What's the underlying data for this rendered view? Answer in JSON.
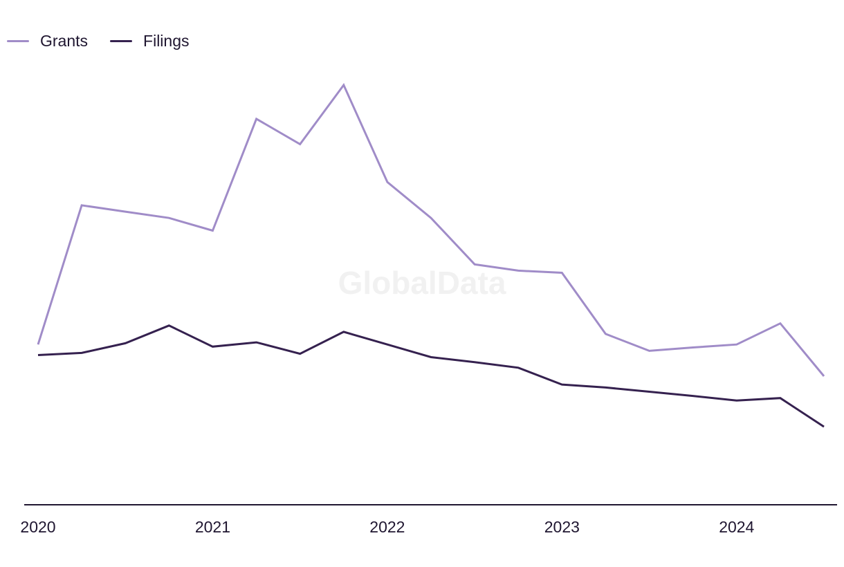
{
  "chart_data": {
    "type": "line",
    "title": "",
    "xlabel": "",
    "ylabel": "",
    "x_ticks": [
      "2020",
      "2021",
      "2022",
      "2023",
      "2024"
    ],
    "x": [
      "2020 Q1",
      "2020 Q2",
      "2020 Q3",
      "2020 Q4",
      "2021 Q1",
      "2021 Q2",
      "2021 Q3",
      "2021 Q4",
      "2022 Q1",
      "2022 Q2",
      "2022 Q3",
      "2022 Q4",
      "2023 Q1",
      "2023 Q2",
      "2023 Q3",
      "2023 Q4",
      "2024 Q1",
      "2024 Q2",
      "2024 Q3"
    ],
    "ylim": [
      0,
      100
    ],
    "grid": false,
    "legend_position": "top-left",
    "watermark": "GlobalData",
    "series": [
      {
        "name": "Grants",
        "color": "#a08cc8",
        "values": [
          38,
          71,
          69.5,
          68,
          65,
          91.5,
          85.5,
          99.5,
          76.5,
          68,
          57,
          55.5,
          55,
          40.5,
          36.5,
          37.3,
          38,
          43,
          30.5
        ]
      },
      {
        "name": "Filings",
        "color": "#35214f",
        "values": [
          35.5,
          36,
          38.3,
          42.5,
          37.5,
          38.5,
          35.8,
          41,
          38,
          35,
          33.8,
          32.5,
          28.5,
          27.8,
          26.8,
          25.8,
          24.7,
          25.3,
          18.5
        ]
      }
    ]
  }
}
